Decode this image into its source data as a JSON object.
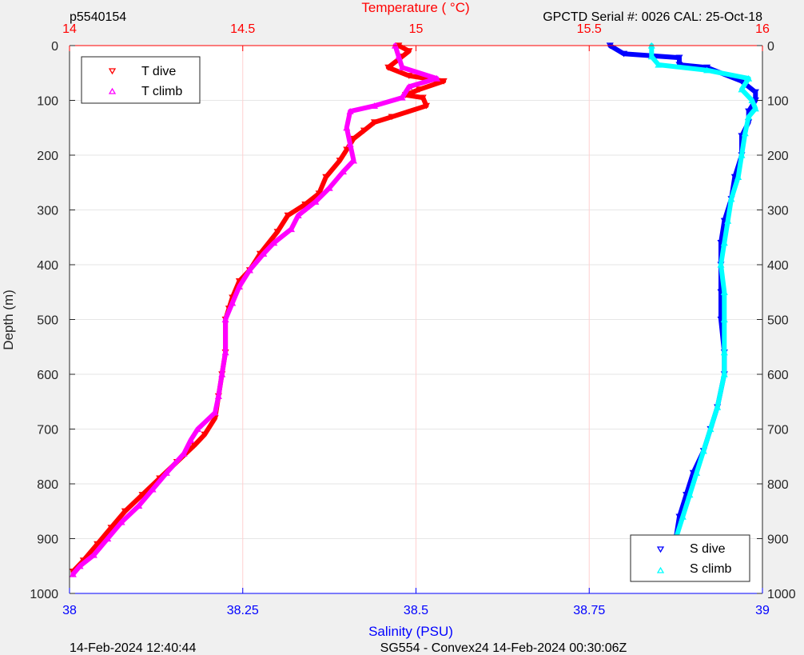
{
  "header": {
    "left": "p5540154",
    "right": "GPCTD Serial #: 0026 CAL: 25-Oct-18"
  },
  "footer": {
    "left": "14-Feb-2024 12:40:44",
    "center": "SG554 - Convex24 14-Feb-2024 00:30:06Z"
  },
  "colors": {
    "background": "#f0f0f0",
    "plot": "#ffffff",
    "temperature_axis": "#ff0000",
    "salinity_axis": "#0000ff",
    "t_dive": "#ff0000",
    "t_climb": "#ff00ff",
    "s_dive": "#0000ff",
    "s_climb": "#00ffff",
    "grid": "#e6e6e6",
    "temp_grid": "#ffd0d0"
  },
  "chart_data": {
    "type": "line",
    "y_axis": {
      "label": "Depth (m)",
      "range": [
        0,
        1000
      ],
      "reversed": true,
      "ticks": [
        "0",
        "100",
        "200",
        "300",
        "400",
        "500",
        "600",
        "700",
        "800",
        "900",
        "1000"
      ],
      "tick_values": [
        0,
        100,
        200,
        300,
        400,
        500,
        600,
        700,
        800,
        900,
        1000
      ]
    },
    "top_axis": {
      "label": "Temperature (    °C)",
      "range": [
        14,
        16
      ],
      "ticks": [
        "14",
        "14.5",
        "15",
        "15.5",
        "16"
      ],
      "tick_values": [
        14,
        14.5,
        15,
        15.5,
        16
      ]
    },
    "bottom_axis": {
      "label": "Salinity (PSU)",
      "range": [
        38,
        39
      ],
      "ticks": [
        "38",
        "38.25",
        "38.5",
        "38.75",
        "39"
      ],
      "tick_values": [
        38,
        38.25,
        38.5,
        38.75,
        39
      ]
    },
    "grid": true,
    "legends": [
      {
        "placement": "top-left",
        "entries": [
          {
            "label": "T dive",
            "series": "t_dive"
          },
          {
            "label": "T climb",
            "series": "t_climb"
          }
        ]
      },
      {
        "placement": "bottom-right",
        "entries": [
          {
            "label": "S dive",
            "series": "s_dive"
          },
          {
            "label": "S climb",
            "series": "s_climb"
          }
        ]
      }
    ],
    "series": [
      {
        "name": "T dive",
        "key": "t_dive",
        "axis": "temperature",
        "marker": "triangle-down",
        "points": [
          [
            14.95,
            0
          ],
          [
            14.98,
            10
          ],
          [
            14.96,
            20
          ],
          [
            14.92,
            40
          ],
          [
            14.98,
            55
          ],
          [
            15.08,
            65
          ],
          [
            15.01,
            80
          ],
          [
            14.97,
            90
          ],
          [
            15.02,
            95
          ],
          [
            15.03,
            110
          ],
          [
            14.93,
            130
          ],
          [
            14.88,
            140
          ],
          [
            14.85,
            155
          ],
          [
            14.82,
            170
          ],
          [
            14.8,
            190
          ],
          [
            14.78,
            210
          ],
          [
            14.74,
            240
          ],
          [
            14.72,
            270
          ],
          [
            14.68,
            290
          ],
          [
            14.63,
            310
          ],
          [
            14.6,
            340
          ],
          [
            14.55,
            380
          ],
          [
            14.52,
            410
          ],
          [
            14.49,
            430
          ],
          [
            14.47,
            460
          ],
          [
            14.46,
            480
          ],
          [
            14.45,
            500
          ],
          [
            14.45,
            560
          ],
          [
            14.44,
            600
          ],
          [
            14.43,
            640
          ],
          [
            14.42,
            680
          ],
          [
            14.39,
            710
          ],
          [
            14.36,
            730
          ],
          [
            14.31,
            760
          ],
          [
            14.26,
            790
          ],
          [
            14.21,
            820
          ],
          [
            14.16,
            850
          ],
          [
            14.12,
            880
          ],
          [
            14.08,
            910
          ],
          [
            14.04,
            940
          ],
          [
            14.01,
            960
          ]
        ]
      },
      {
        "name": "T climb",
        "key": "t_climb",
        "axis": "temperature",
        "marker": "triangle-up",
        "points": [
          [
            14.94,
            0
          ],
          [
            14.95,
            20
          ],
          [
            14.96,
            40
          ],
          [
            15.06,
            60
          ],
          [
            14.98,
            75
          ],
          [
            14.96,
            95
          ],
          [
            14.88,
            110
          ],
          [
            14.81,
            120
          ],
          [
            14.8,
            150
          ],
          [
            14.81,
            180
          ],
          [
            14.82,
            210
          ],
          [
            14.79,
            230
          ],
          [
            14.75,
            260
          ],
          [
            14.71,
            285
          ],
          [
            14.66,
            310
          ],
          [
            14.64,
            335
          ],
          [
            14.59,
            360
          ],
          [
            14.56,
            380
          ],
          [
            14.52,
            410
          ],
          [
            14.49,
            440
          ],
          [
            14.47,
            470
          ],
          [
            14.45,
            500
          ],
          [
            14.45,
            560
          ],
          [
            14.44,
            600
          ],
          [
            14.43,
            640
          ],
          [
            14.42,
            670
          ],
          [
            14.37,
            700
          ],
          [
            14.35,
            720
          ],
          [
            14.33,
            745
          ],
          [
            14.28,
            780
          ],
          [
            14.24,
            810
          ],
          [
            14.2,
            840
          ],
          [
            14.15,
            870
          ],
          [
            14.11,
            900
          ],
          [
            14.07,
            930
          ],
          [
            14.03,
            950
          ],
          [
            14.01,
            965
          ]
        ]
      },
      {
        "name": "S dive",
        "key": "s_dive",
        "axis": "salinity",
        "marker": "triangle-down",
        "points": [
          [
            38.78,
            0
          ],
          [
            38.8,
            15
          ],
          [
            38.88,
            22
          ],
          [
            38.88,
            35
          ],
          [
            38.92,
            40
          ],
          [
            38.97,
            65
          ],
          [
            38.99,
            85
          ],
          [
            38.99,
            100
          ],
          [
            38.98,
            120
          ],
          [
            38.98,
            140
          ],
          [
            38.97,
            165
          ],
          [
            38.97,
            200
          ],
          [
            38.96,
            240
          ],
          [
            38.955,
            280
          ],
          [
            38.945,
            320
          ],
          [
            38.94,
            360
          ],
          [
            38.94,
            400
          ],
          [
            38.94,
            450
          ],
          [
            38.94,
            500
          ],
          [
            38.945,
            560
          ],
          [
            38.945,
            600
          ],
          [
            38.935,
            660
          ],
          [
            38.925,
            700
          ],
          [
            38.915,
            740
          ],
          [
            38.9,
            780
          ],
          [
            38.89,
            820
          ],
          [
            38.88,
            860
          ],
          [
            38.875,
            900
          ],
          [
            38.87,
            935
          ],
          [
            38.865,
            965
          ]
        ]
      },
      {
        "name": "S climb",
        "key": "s_climb",
        "axis": "salinity",
        "marker": "triangle-up",
        "points": [
          [
            38.84,
            0
          ],
          [
            38.84,
            20
          ],
          [
            38.85,
            35
          ],
          [
            38.92,
            45
          ],
          [
            38.98,
            60
          ],
          [
            38.97,
            80
          ],
          [
            38.985,
            100
          ],
          [
            38.99,
            115
          ],
          [
            38.98,
            130
          ],
          [
            38.975,
            160
          ],
          [
            38.97,
            200
          ],
          [
            38.965,
            240
          ],
          [
            38.955,
            280
          ],
          [
            38.95,
            320
          ],
          [
            38.945,
            360
          ],
          [
            38.94,
            400
          ],
          [
            38.945,
            450
          ],
          [
            38.945,
            500
          ],
          [
            38.945,
            560
          ],
          [
            38.945,
            600
          ],
          [
            38.935,
            660
          ],
          [
            38.925,
            700
          ],
          [
            38.915,
            740
          ],
          [
            38.905,
            780
          ],
          [
            38.895,
            820
          ],
          [
            38.885,
            860
          ],
          [
            38.875,
            900
          ],
          [
            38.87,
            935
          ],
          [
            38.865,
            965
          ]
        ]
      }
    ]
  }
}
